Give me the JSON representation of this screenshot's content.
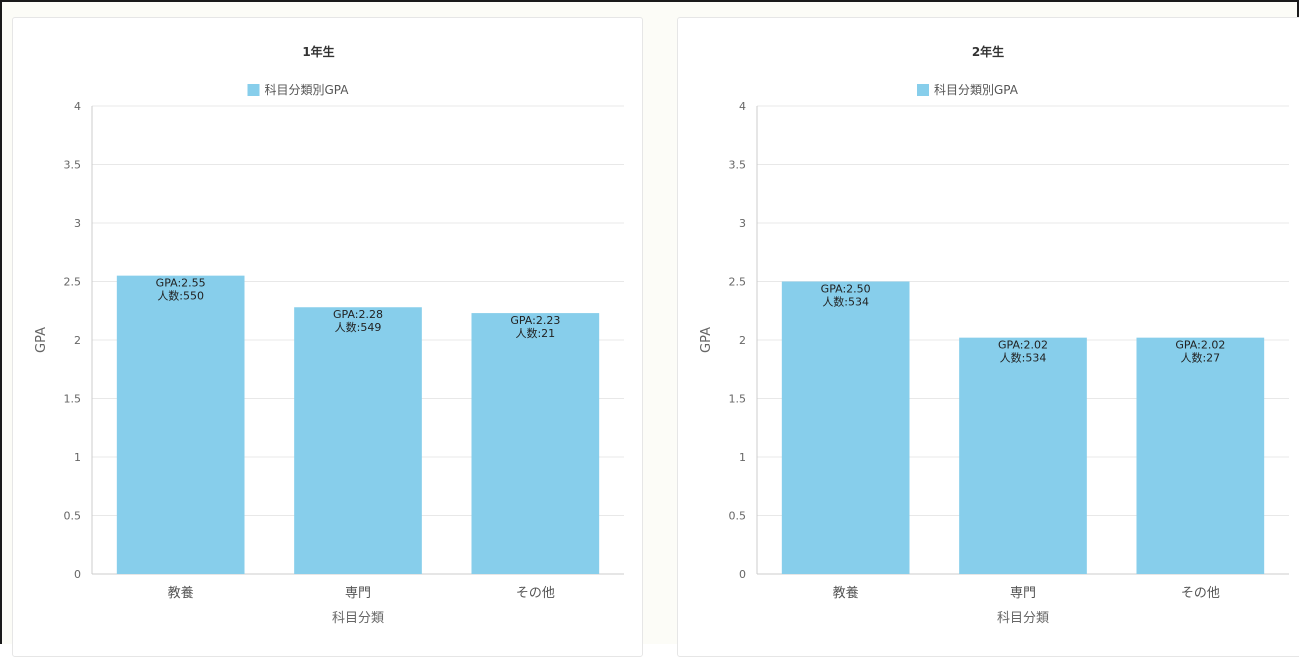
{
  "chart_data": [
    {
      "type": "bar",
      "title": "1年生",
      "legend": {
        "label": "科目分類別GPA",
        "color": "#87ceeb",
        "position": "top"
      },
      "xlabel": "科目分類",
      "ylabel": "GPA",
      "ylim": [
        0,
        4
      ],
      "yticks": [
        "0",
        "0.5",
        "1",
        "1.5",
        "2",
        "2.5",
        "3",
        "3.5",
        "4"
      ],
      "grid": true,
      "categories": [
        "教養",
        "専門",
        "その他"
      ],
      "series": [
        {
          "name": "科目分類別GPA",
          "values": [
            2.55,
            2.28,
            2.23
          ]
        }
      ],
      "data_labels": [
        [
          "GPA:2.55",
          "人数:550"
        ],
        [
          "GPA:2.28",
          "人数:549"
        ],
        [
          "GPA:2.23",
          "人数:21"
        ]
      ]
    },
    {
      "type": "bar",
      "title": "2年生",
      "legend": {
        "label": "科目分類別GPA",
        "color": "#87ceeb",
        "position": "top"
      },
      "xlabel": "科目分類",
      "ylabel": "GPA",
      "ylim": [
        0,
        4
      ],
      "yticks": [
        "0",
        "0.5",
        "1",
        "1.5",
        "2",
        "2.5",
        "3",
        "3.5",
        "4"
      ],
      "grid": true,
      "categories": [
        "教養",
        "専門",
        "その他"
      ],
      "series": [
        {
          "name": "科目分類別GPA",
          "values": [
            2.5,
            2.02,
            2.02
          ]
        }
      ],
      "data_labels": [
        [
          "GPA:2.50",
          "人数:534"
        ],
        [
          "GPA:2.02",
          "人数:534"
        ],
        [
          "GPA:2.02",
          "人数:27"
        ]
      ]
    }
  ]
}
